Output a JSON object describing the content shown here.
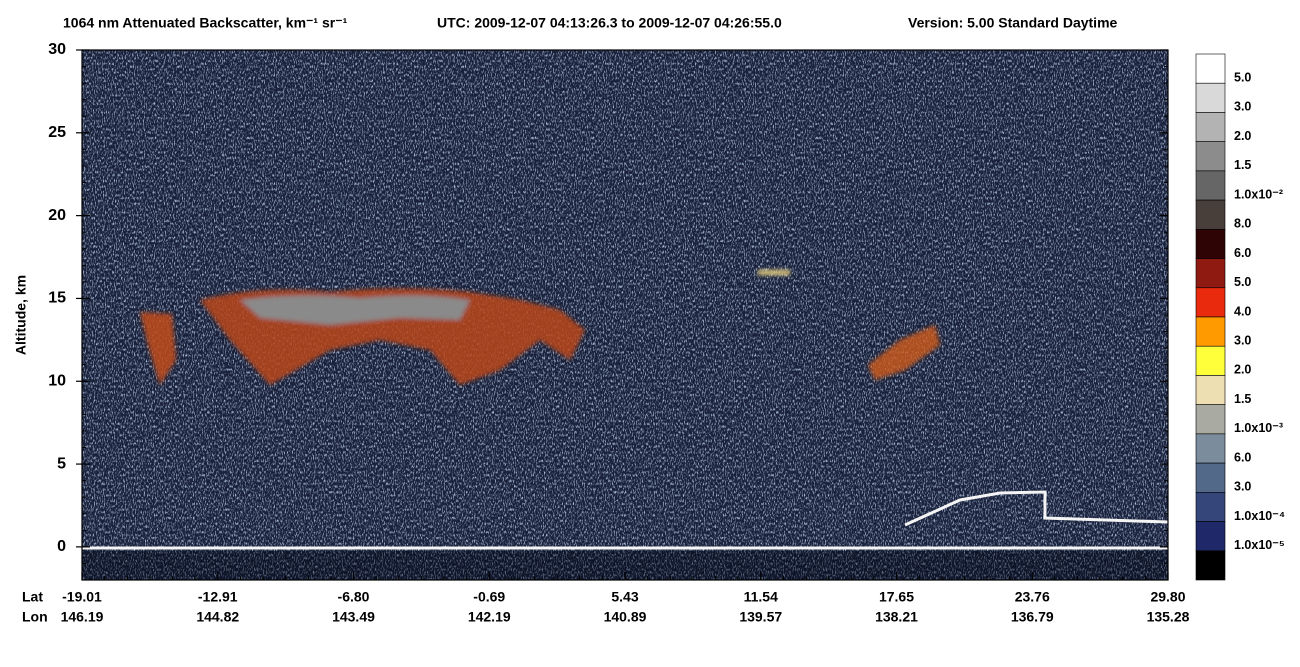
{
  "chart_data": {
    "type": "heatmap",
    "title": "1064 nm Attenuated Backscatter, km⁻¹ sr⁻¹",
    "time_range": "UTC:  2009-12-07 04:13:26.3  to  2009-12-07 04:26:55.0",
    "version": "Version: 5.00  Standard  Daytime",
    "ylabel": "Altitude, km",
    "ylim": [
      -2,
      30
    ],
    "yticks": [
      0,
      5,
      10,
      15,
      20,
      25,
      30
    ],
    "x_row_labels": [
      "Lat",
      "Lon"
    ],
    "lat_labels": [
      "-19.01",
      "-12.91",
      "-6.80",
      "-0.69",
      "5.43",
      "11.54",
      "17.65",
      "23.76",
      "29.80"
    ],
    "lon_labels": [
      "146.19",
      "144.82",
      "143.49",
      "142.19",
      "140.89",
      "139.57",
      "138.21",
      "136.79",
      "135.28"
    ],
    "colorbar": {
      "colors": [
        "#ffffff",
        "#d9d9d9",
        "#b3b3b3",
        "#8c8c8c",
        "#666666",
        "#483e3a",
        "#2e0404",
        "#8e1a12",
        "#ea2a0c",
        "#ff9a00",
        "#ffff3a",
        "#eddfb2",
        "#a9aba3",
        "#7b8c9c",
        "#52698a",
        "#35477a",
        "#1f2868",
        "#000000"
      ],
      "labels": [
        "5.0",
        "3.0",
        "2.0",
        "1.5",
        "1.0x10⁻²",
        "8.0",
        "6.0",
        "5.0",
        "4.0",
        "3.0",
        "2.0",
        "1.5",
        "1.0x10⁻³",
        "6.0",
        "3.0",
        "1.0x10⁻⁴",
        "1.0x10⁻⁵"
      ]
    }
  }
}
